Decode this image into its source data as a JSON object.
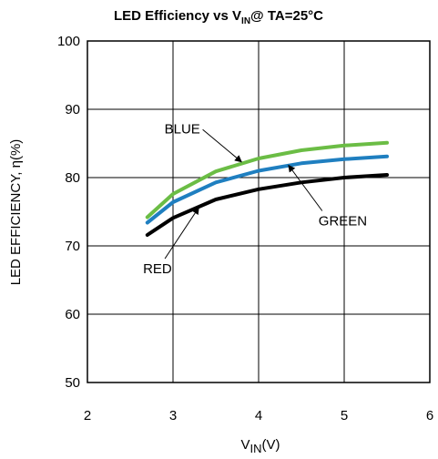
{
  "chart_data": {
    "type": "line",
    "title": {
      "prefix": "LED Efficiency vs V",
      "sub": "IN",
      "suffix": "@ TA=25°C"
    },
    "xlabel": {
      "main": "V",
      "sub": "IN",
      "suffix": "(V)"
    },
    "ylabel": "LED EFFICIENCY, η(%)",
    "xlim": [
      2,
      6
    ],
    "ylim": [
      50,
      100
    ],
    "xticks": [
      "2",
      "3",
      "4",
      "5",
      "6"
    ],
    "yticks": [
      "50",
      "60",
      "70",
      "80",
      "90",
      "100"
    ],
    "grid": true,
    "series": [
      {
        "name": "BLUE",
        "color": "#6bbd45",
        "x": [
          2.7,
          3.0,
          3.5,
          4.0,
          4.5,
          5.0,
          5.5
        ],
        "y": [
          74.2,
          77.6,
          80.9,
          82.8,
          84.0,
          84.7,
          85.1
        ]
      },
      {
        "name": "GREEN",
        "color": "#1f7fc0",
        "x": [
          2.7,
          3.0,
          3.5,
          4.0,
          4.5,
          5.0,
          5.5
        ],
        "y": [
          73.4,
          76.4,
          79.3,
          81.0,
          82.1,
          82.7,
          83.1
        ]
      },
      {
        "name": "RED",
        "color": "#000000",
        "x": [
          2.7,
          3.0,
          3.5,
          4.0,
          4.5,
          5.0,
          5.5
        ],
        "y": [
          71.6,
          74.1,
          76.8,
          78.3,
          79.3,
          80.0,
          80.4
        ]
      }
    ],
    "annotations": [
      {
        "label": "BLUE",
        "text_x": 2.9,
        "text_y": 86.5,
        "arrow_to": [
          3.8,
          82.3
        ]
      },
      {
        "label": "GREEN",
        "text_x": 4.7,
        "text_y": 73.0,
        "arrow_to": [
          4.35,
          81.8
        ]
      },
      {
        "label": "RED",
        "text_x": 2.65,
        "text_y": 66.0,
        "arrow_to": [
          3.3,
          75.6
        ]
      }
    ]
  }
}
